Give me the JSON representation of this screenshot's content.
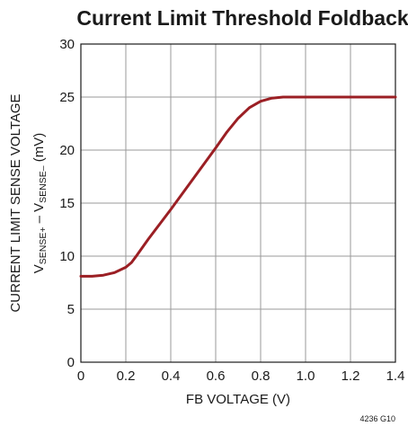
{
  "chart_data": {
    "type": "line",
    "title": "Current Limit Threshold Foldback",
    "xlabel": "FB VOLTAGE (V)",
    "ylabel": {
      "line1": "CURRENT LIMIT SENSE VOLTAGE",
      "line2": {
        "v1": "V",
        "sub1": "SENSE+",
        "mid": " – V",
        "sub2": "SENSE–",
        "tail": " (mV)"
      }
    },
    "xlim": [
      0,
      1.4
    ],
    "ylim": [
      0,
      30
    ],
    "x_ticks": [
      "0",
      "0.2",
      "0.4",
      "0.6",
      "0.8",
      "1.0",
      "1.2",
      "1.4"
    ],
    "y_ticks": [
      "0",
      "5",
      "10",
      "15",
      "20",
      "25",
      "30"
    ],
    "grid": true,
    "series": [
      {
        "color": "#9b1f24",
        "x": [
          0,
          0.05,
          0.1,
          0.15,
          0.2,
          0.225,
          0.25,
          0.3,
          0.35,
          0.4,
          0.45,
          0.5,
          0.55,
          0.6,
          0.65,
          0.7,
          0.75,
          0.8,
          0.85,
          0.9,
          0.95,
          1.0,
          1.2,
          1.4
        ],
        "y": [
          8.1,
          8.1,
          8.2,
          8.45,
          8.95,
          9.4,
          10.1,
          11.6,
          13.0,
          14.4,
          15.85,
          17.3,
          18.75,
          20.2,
          21.7,
          23.0,
          24.0,
          24.6,
          24.9,
          25.0,
          25.0,
          25.0,
          25.0,
          25.0
        ]
      }
    ],
    "note": "4236 G10"
  }
}
